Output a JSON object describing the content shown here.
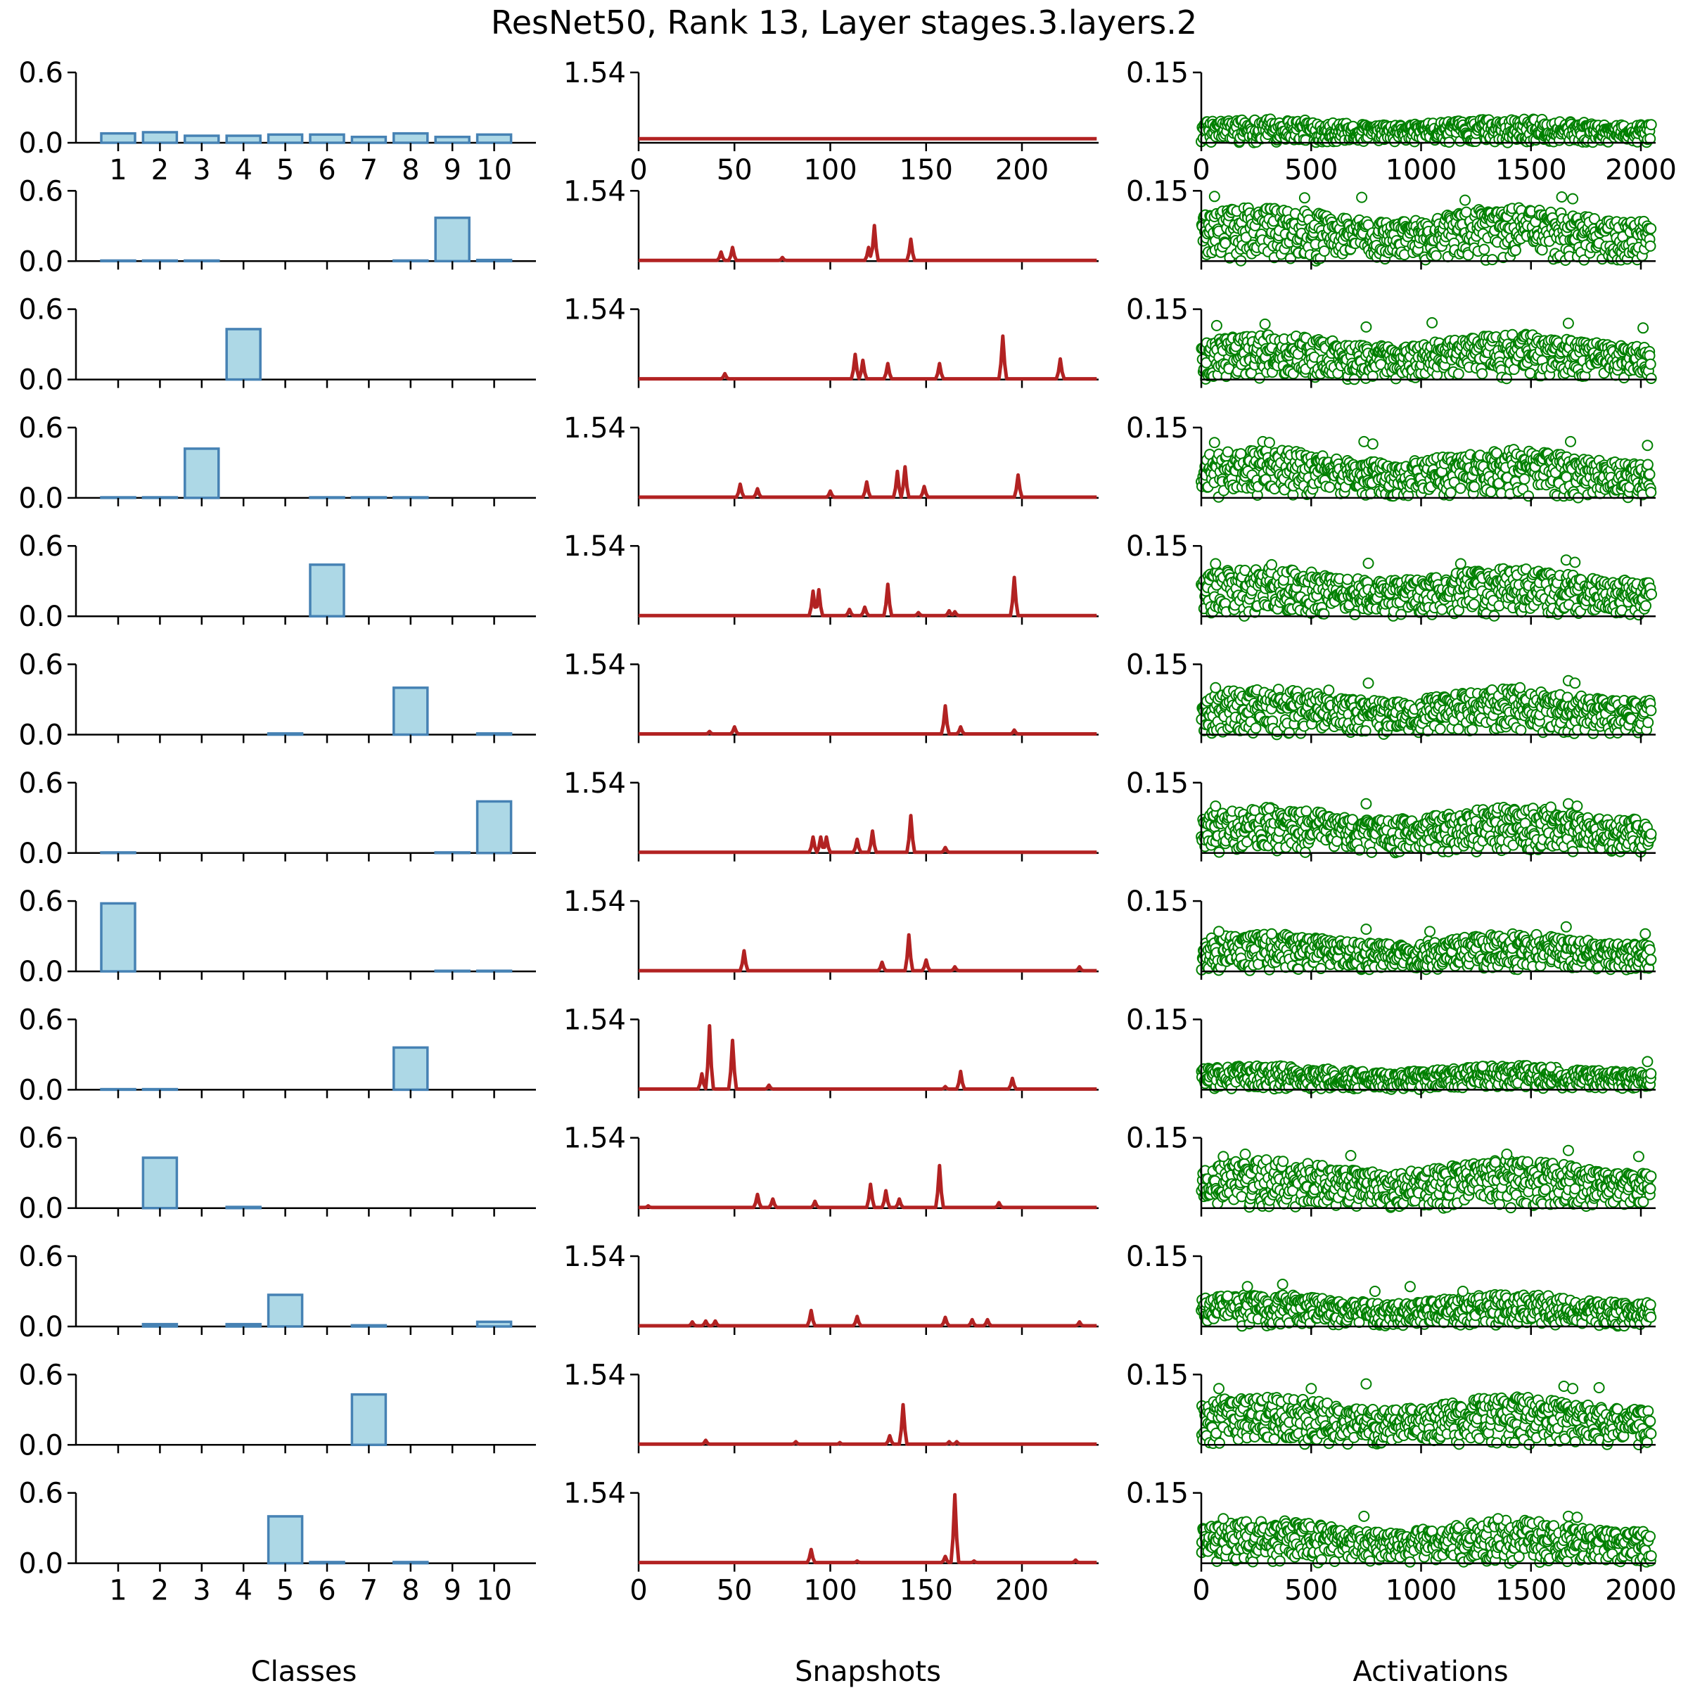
{
  "chart_data": {
    "type": "small-multiples",
    "title": "ResNet50, Rank 13, Layer stages.3.layers.2",
    "rows": 13,
    "columns": [
      {
        "type": "bar",
        "xlabel": "Classes",
        "categories": [
          "1",
          "2",
          "3",
          "4",
          "5",
          "6",
          "7",
          "8",
          "9",
          "10"
        ],
        "ylim": [
          0,
          0.6
        ],
        "yticks": [
          "0.0",
          "0.6"
        ],
        "bar_fill": "#add8e6",
        "bar_edge": "#4682b4",
        "rows": [
          [
            0.08,
            0.09,
            0.06,
            0.06,
            0.07,
            0.07,
            0.05,
            0.08,
            0.05,
            0.07
          ],
          [
            0.005,
            0.005,
            0.005,
            0.0,
            0.0,
            0.0,
            0.0,
            0.005,
            0.37,
            0.01
          ],
          [
            0.0,
            0.0,
            0.0,
            0.43,
            0.0,
            0.0,
            0.0,
            0.0,
            0.0,
            0.0
          ],
          [
            0.005,
            0.005,
            0.42,
            0.0,
            0.0,
            0.005,
            0.005,
            0.005,
            0.0,
            0.0
          ],
          [
            0.0,
            0.0,
            0.0,
            0.0,
            0.0,
            0.44,
            0.0,
            0.0,
            0.0,
            0.0
          ],
          [
            0.0,
            0.0,
            0.0,
            0.0,
            0.01,
            0.0,
            0.0,
            0.4,
            0.0,
            0.01
          ],
          [
            0.005,
            0.0,
            0.0,
            0.0,
            0.0,
            0.0,
            0.0,
            0.0,
            0.005,
            0.44
          ],
          [
            0.58,
            0.0,
            0.0,
            0.0,
            0.0,
            0.0,
            0.0,
            0.0,
            0.005,
            0.005
          ],
          [
            0.005,
            0.005,
            0.0,
            0.0,
            0.0,
            0.0,
            0.0,
            0.36,
            0.0,
            0.0
          ],
          [
            0.0,
            0.43,
            0.0,
            0.01,
            0.0,
            0.0,
            0.0,
            0.0,
            0.0,
            0.0
          ],
          [
            0.0,
            0.02,
            0.0,
            0.02,
            0.27,
            0.0,
            0.01,
            0.0,
            0.0,
            0.04
          ],
          [
            0.0,
            0.0,
            0.0,
            0.0,
            0.0,
            0.0,
            0.43,
            0.0,
            0.0,
            0.0
          ],
          [
            0.0,
            0.0,
            0.0,
            0.0,
            0.4,
            0.01,
            0.0,
            0.01,
            0.0,
            0.0
          ]
        ]
      },
      {
        "type": "line",
        "xlabel": "Snapshots",
        "xlim": [
          0,
          240
        ],
        "xticks": [
          0,
          50,
          100,
          150,
          200
        ],
        "ylim": [
          0,
          1.54
        ],
        "yticks": [
          "1.54"
        ],
        "n_points": 240,
        "base_levels": [
          0.09,
          0.015,
          0.015,
          0.015,
          0.015,
          0.015,
          0.015,
          0.015,
          0.015,
          0.015,
          0.015,
          0.015,
          0.015
        ],
        "color": "#b22222",
        "peaks": [
          [
            [
              52,
              0.06
            ],
            [
              80,
              0.07
            ],
            [
              122,
              0.06
            ],
            [
              150,
              0.06
            ],
            [
              175,
              0.07
            ],
            [
              205,
              0.06
            ]
          ],
          [
            [
              43,
              0.2
            ],
            [
              49,
              0.3
            ],
            [
              75,
              0.08
            ],
            [
              120,
              0.3
            ],
            [
              123,
              0.78
            ],
            [
              142,
              0.48
            ]
          ],
          [
            [
              45,
              0.13
            ],
            [
              113,
              0.55
            ],
            [
              117,
              0.42
            ],
            [
              130,
              0.35
            ],
            [
              157,
              0.35
            ],
            [
              190,
              0.95
            ],
            [
              220,
              0.45
            ]
          ],
          [
            [
              53,
              0.3
            ],
            [
              62,
              0.2
            ],
            [
              100,
              0.15
            ],
            [
              119,
              0.35
            ],
            [
              135,
              0.58
            ],
            [
              139,
              0.68
            ],
            [
              149,
              0.25
            ],
            [
              198,
              0.5
            ]
          ],
          [
            [
              91,
              0.55
            ],
            [
              94,
              0.58
            ],
            [
              110,
              0.15
            ],
            [
              118,
              0.2
            ],
            [
              130,
              0.7
            ],
            [
              146,
              0.08
            ],
            [
              162,
              0.12
            ],
            [
              165,
              0.1
            ],
            [
              196,
              0.85
            ]
          ],
          [
            [
              37,
              0.07
            ],
            [
              50,
              0.17
            ],
            [
              160,
              0.63
            ],
            [
              168,
              0.17
            ],
            [
              196,
              0.1
            ]
          ],
          [
            [
              91,
              0.35
            ],
            [
              95,
              0.35
            ],
            [
              98,
              0.35
            ],
            [
              114,
              0.3
            ],
            [
              122,
              0.48
            ],
            [
              142,
              0.82
            ],
            [
              160,
              0.12
            ]
          ],
          [
            [
              55,
              0.45
            ],
            [
              127,
              0.2
            ],
            [
              141,
              0.8
            ],
            [
              150,
              0.25
            ],
            [
              165,
              0.1
            ],
            [
              230,
              0.1
            ]
          ],
          [
            [
              33,
              0.35
            ],
            [
              37,
              1.4
            ],
            [
              49,
              1.08
            ],
            [
              68,
              0.1
            ],
            [
              160,
              0.07
            ],
            [
              168,
              0.4
            ],
            [
              195,
              0.25
            ]
          ],
          [
            [
              5,
              0.05
            ],
            [
              62,
              0.3
            ],
            [
              70,
              0.2
            ],
            [
              92,
              0.15
            ],
            [
              121,
              0.52
            ],
            [
              129,
              0.38
            ],
            [
              136,
              0.2
            ],
            [
              157,
              0.93
            ],
            [
              188,
              0.12
            ]
          ],
          [
            [
              28,
              0.1
            ],
            [
              35,
              0.12
            ],
            [
              40,
              0.12
            ],
            [
              90,
              0.35
            ],
            [
              114,
              0.22
            ],
            [
              160,
              0.2
            ],
            [
              174,
              0.15
            ],
            [
              182,
              0.15
            ],
            [
              230,
              0.1
            ]
          ],
          [
            [
              35,
              0.1
            ],
            [
              82,
              0.07
            ],
            [
              105,
              0.05
            ],
            [
              131,
              0.2
            ],
            [
              138,
              0.88
            ],
            [
              162,
              0.07
            ],
            [
              166,
              0.07
            ]
          ],
          [
            [
              90,
              0.3
            ],
            [
              114,
              0.05
            ],
            [
              160,
              0.15
            ],
            [
              165,
              1.5
            ],
            [
              175,
              0.05
            ],
            [
              228,
              0.07
            ]
          ]
        ]
      },
      {
        "type": "scatter",
        "xlabel": "Activations",
        "xlim": [
          0,
          2048
        ],
        "xticks": [
          0,
          500,
          1000,
          1500,
          2000
        ],
        "ylim": [
          0,
          0.15
        ],
        "yticks": [
          "0.15"
        ],
        "marker": "open-circle",
        "color": "#008000",
        "rows": [
          {
            "typical_max": 0.045,
            "outliers": []
          },
          {
            "typical_max": 0.1,
            "outliers": [
              [
                60,
                0.138
              ],
              [
                470,
                0.135
              ],
              [
                730,
                0.136
              ],
              [
                1200,
                0.13
              ],
              [
                1640,
                0.137
              ],
              [
                1690,
                0.133
              ]
            ]
          },
          {
            "typical_max": 0.085,
            "outliers": [
              [
                70,
                0.115
              ],
              [
                290,
                0.118
              ],
              [
                750,
                0.112
              ],
              [
                1050,
                0.121
              ],
              [
                1670,
                0.12
              ],
              [
                2010,
                0.11
              ]
            ]
          },
          {
            "typical_max": 0.09,
            "outliers": [
              [
                60,
                0.118
              ],
              [
                280,
                0.12
              ],
              [
                310,
                0.118
              ],
              [
                740,
                0.12
              ],
              [
                780,
                0.115
              ],
              [
                1680,
                0.12
              ],
              [
                2030,
                0.112
              ]
            ]
          },
          {
            "typical_max": 0.09,
            "outliers": [
              [
                65,
                0.112
              ],
              [
                320,
                0.11
              ],
              [
                760,
                0.113
              ],
              [
                1180,
                0.112
              ],
              [
                1660,
                0.12
              ],
              [
                1700,
                0.115
              ]
            ]
          },
          {
            "typical_max": 0.085,
            "outliers": [
              [
                65,
                0.1
              ],
              [
                580,
                0.095
              ],
              [
                760,
                0.11
              ],
              [
                1450,
                0.1
              ],
              [
                1670,
                0.115
              ],
              [
                1700,
                0.11
              ]
            ]
          },
          {
            "typical_max": 0.085,
            "outliers": [
              [
                65,
                0.1
              ],
              [
                310,
                0.095
              ],
              [
                750,
                0.105
              ],
              [
                1590,
                0.098
              ],
              [
                1670,
                0.105
              ],
              [
                1710,
                0.1
              ]
            ]
          },
          {
            "typical_max": 0.07,
            "outliers": [
              [
                80,
                0.085
              ],
              [
                320,
                0.08
              ],
              [
                750,
                0.09
              ],
              [
                1040,
                0.085
              ],
              [
                1660,
                0.095
              ],
              [
                2020,
                0.08
              ]
            ]
          },
          {
            "typical_max": 0.045,
            "outliers": [
              [
                1280,
                0.05
              ],
              [
                1590,
                0.048
              ],
              [
                2030,
                0.06
              ]
            ]
          },
          {
            "typical_max": 0.09,
            "outliers": [
              [
                100,
                0.11
              ],
              [
                200,
                0.115
              ],
              [
                680,
                0.112
              ],
              [
                1390,
                0.115
              ],
              [
                1670,
                0.123
              ],
              [
                1990,
                0.11
              ]
            ]
          },
          {
            "typical_max": 0.06,
            "outliers": [
              [
                120,
                0.065
              ],
              [
                210,
                0.085
              ],
              [
                370,
                0.09
              ],
              [
                790,
                0.075
              ],
              [
                950,
                0.085
              ],
              [
                1190,
                0.075
              ]
            ]
          },
          {
            "typical_max": 0.09,
            "outliers": [
              [
                80,
                0.12
              ],
              [
                500,
                0.12
              ],
              [
                750,
                0.13
              ],
              [
                1650,
                0.125
              ],
              [
                1690,
                0.12
              ],
              [
                1810,
                0.122
              ]
            ]
          },
          {
            "typical_max": 0.08,
            "outliers": [
              [
                100,
                0.095
              ],
              [
                740,
                0.1
              ],
              [
                1350,
                0.095
              ],
              [
                1670,
                0.1
              ],
              [
                1710,
                0.098
              ]
            ]
          }
        ]
      }
    ]
  }
}
